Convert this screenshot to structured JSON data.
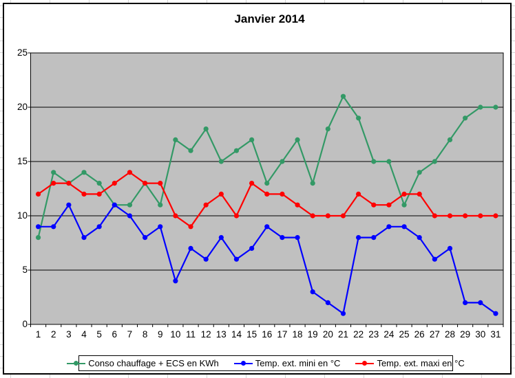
{
  "chart_data": {
    "type": "line",
    "title": "Janvier 2014",
    "categories": [
      1,
      2,
      3,
      4,
      5,
      6,
      7,
      8,
      9,
      10,
      11,
      12,
      13,
      14,
      15,
      16,
      17,
      18,
      19,
      20,
      21,
      22,
      23,
      24,
      25,
      26,
      27,
      28,
      29,
      30,
      31
    ],
    "series": [
      {
        "name": "Conso chauffage + ECS en KWh",
        "color": "#339966",
        "values": [
          8,
          14,
          13,
          14,
          13,
          11,
          11,
          13,
          11,
          17,
          16,
          18,
          15,
          16,
          17,
          13,
          15,
          17,
          13,
          18,
          21,
          19,
          15,
          15,
          11,
          14,
          15,
          17,
          19,
          20,
          20
        ]
      },
      {
        "name": "Temp. ext. mini en °C",
        "color": "#0000FF",
        "values": [
          9,
          9,
          11,
          8,
          9,
          11,
          10,
          8,
          9,
          4,
          7,
          6,
          8,
          6,
          7,
          9,
          8,
          8,
          3,
          2,
          1,
          8,
          8,
          9,
          9,
          8,
          6,
          7,
          2,
          2,
          1
        ]
      },
      {
        "name": "Temp. ext. maxi en °C",
        "color": "#FF0000",
        "values": [
          12,
          13,
          13,
          12,
          12,
          13,
          14,
          13,
          13,
          10,
          9,
          11,
          12,
          10,
          13,
          12,
          12,
          11,
          10,
          10,
          10,
          12,
          11,
          11,
          12,
          12,
          10,
          10,
          10,
          10,
          10
        ]
      }
    ],
    "xlabel": "",
    "ylabel": "",
    "ylim": [
      0,
      25
    ],
    "yticks": [
      0,
      5,
      10,
      15,
      20,
      25
    ],
    "grid": true,
    "legend_position": "bottom",
    "plot_background": "#C0C0C0",
    "gridline_color": "#000000"
  }
}
